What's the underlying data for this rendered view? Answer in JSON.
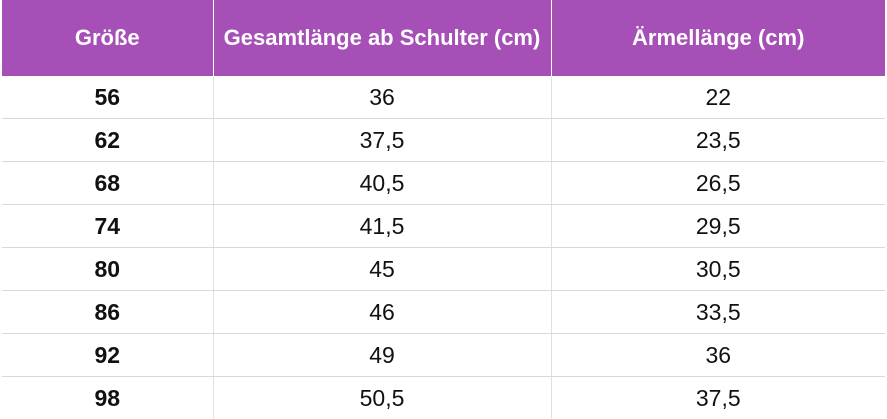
{
  "table": {
    "headers": [
      "Größe",
      "Gesamtlänge ab Schulter (cm)",
      "Ärmellänge (cm)"
    ],
    "rows": [
      [
        "56",
        "36",
        "22"
      ],
      [
        "62",
        "37,5",
        "23,5"
      ],
      [
        "68",
        "40,5",
        "26,5"
      ],
      [
        "74",
        "41,5",
        "29,5"
      ],
      [
        "80",
        "45",
        "30,5"
      ],
      [
        "86",
        "46",
        "33,5"
      ],
      [
        "92",
        "49",
        "36"
      ],
      [
        "98",
        "50,5",
        "37,5"
      ]
    ]
  },
  "colors": {
    "header_bg": "#a64fb7",
    "header_text": "#ffffff",
    "row_divider": "#d9d9d9"
  }
}
